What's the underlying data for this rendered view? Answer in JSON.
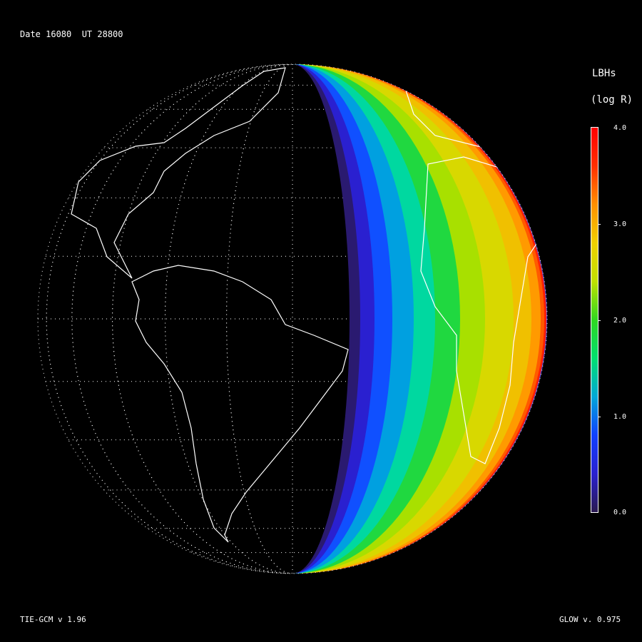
{
  "header": {
    "date_label": "Date 16080  UT 28800"
  },
  "colorbar": {
    "title": "LBHs",
    "units": "(log R)",
    "ticks": [
      "4.0",
      "3.0",
      "2.0",
      "1.0",
      "0.0"
    ],
    "range": [
      0.0,
      4.0
    ],
    "colors": [
      "#2a1a50",
      "#2a20d0",
      "#1040ff",
      "#00a8d8",
      "#00e070",
      "#30d820",
      "#c0e000",
      "#f0d000",
      "#ff9000",
      "#ff3000",
      "#ff0000"
    ]
  },
  "footer": {
    "model_left": "TIE-GCM v 1.96",
    "model_right": "GLOW v. 0.975"
  }
}
